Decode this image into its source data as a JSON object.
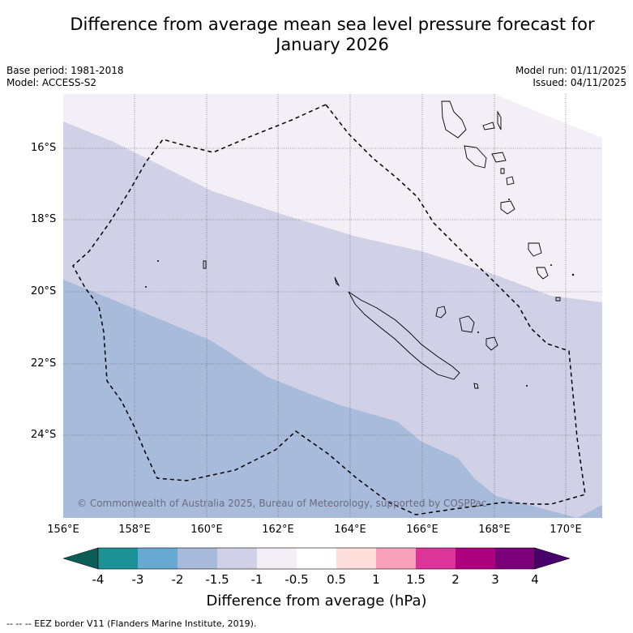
{
  "title_line1": "Difference from average mean sea level pressure forecast for",
  "title_line2": "January 2026",
  "base_period": "Base period: 1981-2018",
  "model": "Model: ACCESS-S2",
  "model_run": "Model run: 01/11/2025",
  "issued": "Issued: 04/11/2025",
  "latitudes": [
    "16°S",
    "18°S",
    "20°S",
    "22°S",
    "24°S"
  ],
  "longitudes": [
    "156°E",
    "158°E",
    "160°E",
    "162°E",
    "164°E",
    "166°E",
    "168°E",
    "170°E"
  ],
  "colorbar": {
    "title": "Difference from average (hPa)",
    "ticks": [
      "-4",
      "-3",
      "-2",
      "-1.5",
      "-1",
      "-0.5",
      "0.5",
      "1",
      "1.5",
      "2",
      "3",
      "4"
    ],
    "colors": [
      "#0c5c57",
      "#1c9196",
      "#68a9d1",
      "#a9bbdb",
      "#d0d1e6",
      "#f4eef6",
      "#ffffff",
      "#fedfdc",
      "#f9a1ba",
      "#dd3497",
      "#ae017e",
      "#7a0177",
      "#49006a"
    ]
  },
  "copyright": "© Commonwealth of Australia 2025, Bureau of Meteorology, supported by COSPPac",
  "footer": "--  --  -- EEZ border V11 (Flanders Marine Institute, 2019)."
}
